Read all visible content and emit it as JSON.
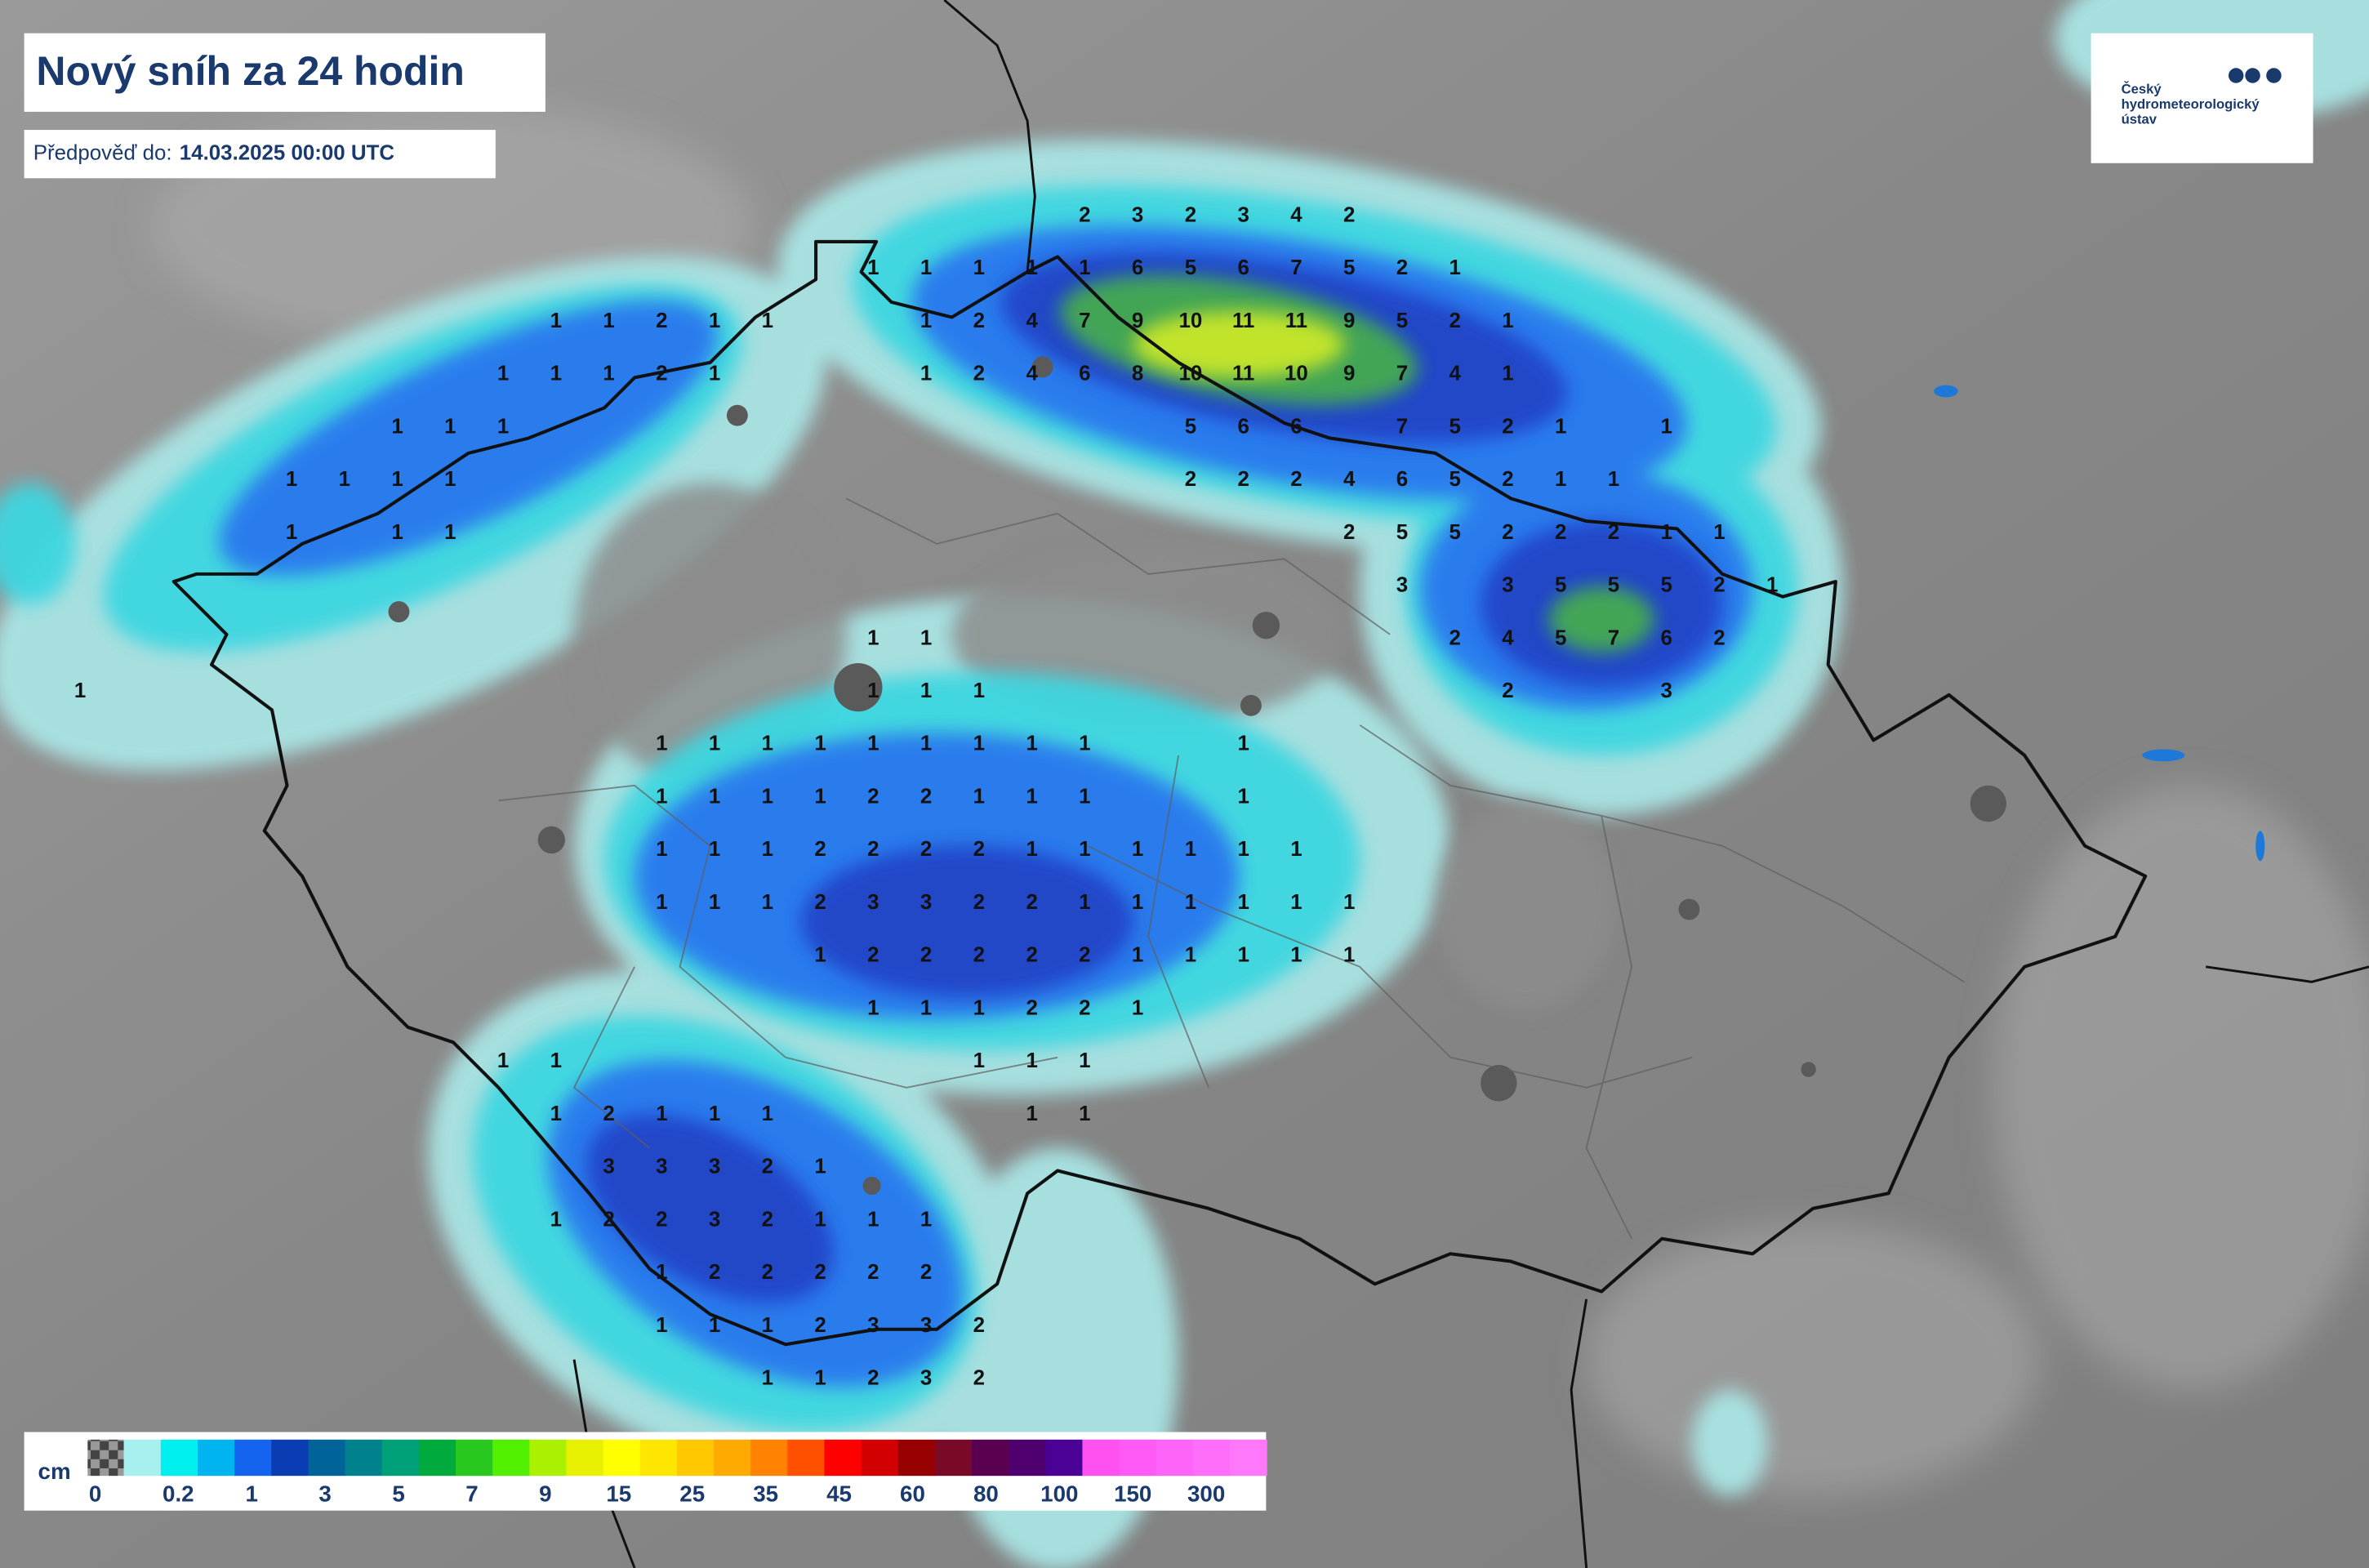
{
  "header": {
    "title": "Nový sníh za 24 hodin",
    "forecast_label": "Předpověď do:",
    "forecast_time": "14.03.2025 00:00 UTC"
  },
  "logo": {
    "lines": [
      "Český",
      "hydrometeorologický",
      "ústav"
    ]
  },
  "legend": {
    "unit": "cm",
    "labels": [
      "0",
      "0.2",
      "1",
      "3",
      "5",
      "7",
      "9",
      "15",
      "25",
      "35",
      "45",
      "60",
      "80",
      "100",
      "150",
      "300"
    ],
    "colors": [
      "#a8f0f0",
      "#00f0f0",
      "#00b4f0",
      "#1464f0",
      "#0a3cb4",
      "#00649b",
      "#00828c",
      "#00a078",
      "#00aa3c",
      "#28c81e",
      "#50f000",
      "#aaf000",
      "#e6f000",
      "#ffff00",
      "#ffe600",
      "#ffc800",
      "#ffaa00",
      "#ff8200",
      "#ff5000",
      "#ff0000",
      "#d20000",
      "#960000",
      "#780a28",
      "#5a0050",
      "#50006e",
      "#4b0096",
      "#ff50f0",
      "#ff5af5",
      "#ff64f8",
      "#ff6efa",
      "#ff78fc"
    ]
  },
  "map": {
    "grid": [
      [
        null,
        null,
        null,
        null,
        null,
        null,
        null,
        null,
        null,
        null,
        null,
        null,
        null,
        null,
        null,
        null,
        null,
        null,
        null,
        2,
        3,
        2,
        3,
        4,
        2
      ],
      [
        null,
        null,
        null,
        null,
        null,
        null,
        null,
        null,
        null,
        null,
        null,
        null,
        null,
        null,
        null,
        1,
        1,
        1,
        1,
        1,
        6,
        5,
        6,
        7,
        5,
        2,
        1
      ],
      [
        null,
        null,
        null,
        null,
        null,
        null,
        null,
        null,
        null,
        1,
        1,
        2,
        1,
        1,
        null,
        null,
        1,
        2,
        4,
        7,
        9,
        10,
        11,
        11,
        9,
        5,
        2,
        1
      ],
      [
        null,
        null,
        null,
        null,
        null,
        null,
        null,
        null,
        1,
        1,
        1,
        2,
        1,
        null,
        null,
        null,
        1,
        2,
        4,
        6,
        8,
        10,
        11,
        10,
        9,
        7,
        4,
        1
      ],
      [
        null,
        null,
        null,
        null,
        null,
        null,
        1,
        1,
        1,
        null,
        null,
        null,
        null,
        null,
        null,
        null,
        null,
        null,
        null,
        null,
        null,
        5,
        6,
        6,
        null,
        7,
        5,
        2,
        1,
        null,
        1
      ],
      [
        null,
        null,
        null,
        null,
        1,
        1,
        1,
        1,
        null,
        null,
        null,
        null,
        null,
        null,
        null,
        null,
        null,
        null,
        null,
        null,
        null,
        2,
        2,
        2,
        4,
        6,
        5,
        2,
        1,
        1
      ],
      [
        null,
        null,
        null,
        null,
        1,
        null,
        1,
        1,
        null,
        null,
        null,
        null,
        null,
        null,
        null,
        null,
        null,
        null,
        null,
        null,
        null,
        null,
        null,
        null,
        2,
        5,
        5,
        2,
        2,
        2,
        1,
        1
      ],
      [
        null,
        null,
        null,
        null,
        null,
        null,
        null,
        null,
        null,
        null,
        null,
        null,
        null,
        null,
        null,
        null,
        null,
        null,
        null,
        null,
        null,
        null,
        null,
        null,
        null,
        3,
        null,
        3,
        5,
        5,
        5,
        2,
        1
      ],
      [
        null,
        null,
        null,
        null,
        null,
        null,
        null,
        null,
        null,
        null,
        null,
        null,
        null,
        null,
        null,
        1,
        1,
        null,
        null,
        null,
        null,
        null,
        null,
        null,
        null,
        null,
        2,
        4,
        5,
        7,
        6,
        2
      ],
      [
        1,
        null,
        null,
        null,
        null,
        null,
        null,
        null,
        null,
        null,
        null,
        null,
        null,
        null,
        null,
        1,
        1,
        1,
        null,
        null,
        null,
        null,
        null,
        null,
        null,
        null,
        null,
        2,
        null,
        null,
        3
      ],
      [
        null,
        null,
        null,
        null,
        null,
        null,
        null,
        null,
        null,
        null,
        null,
        1,
        1,
        1,
        1,
        1,
        1,
        1,
        1,
        1,
        null,
        null,
        1
      ],
      [
        null,
        null,
        null,
        null,
        null,
        null,
        null,
        null,
        null,
        null,
        null,
        1,
        1,
        1,
        1,
        2,
        2,
        1,
        1,
        1,
        null,
        null,
        1
      ],
      [
        null,
        null,
        null,
        null,
        null,
        null,
        null,
        null,
        null,
        null,
        null,
        1,
        1,
        1,
        2,
        2,
        2,
        2,
        1,
        1,
        1,
        1,
        1,
        1
      ],
      [
        null,
        null,
        null,
        null,
        null,
        null,
        null,
        null,
        null,
        null,
        null,
        1,
        1,
        1,
        2,
        3,
        3,
        2,
        2,
        1,
        1,
        1,
        1,
        1,
        1
      ],
      [
        null,
        null,
        null,
        null,
        null,
        null,
        null,
        null,
        null,
        null,
        null,
        null,
        null,
        null,
        1,
        2,
        2,
        2,
        2,
        2,
        1,
        1,
        1,
        1,
        1
      ],
      [
        null,
        null,
        null,
        null,
        null,
        null,
        null,
        null,
        null,
        null,
        null,
        null,
        null,
        null,
        null,
        1,
        1,
        1,
        2,
        2,
        1
      ],
      [
        null,
        null,
        null,
        null,
        null,
        null,
        null,
        null,
        1,
        1,
        null,
        null,
        null,
        null,
        null,
        null,
        null,
        1,
        1,
        1
      ],
      [
        null,
        null,
        null,
        null,
        null,
        null,
        null,
        null,
        null,
        1,
        2,
        1,
        1,
        1,
        null,
        null,
        null,
        null,
        1,
        1
      ],
      [
        null,
        null,
        null,
        null,
        null,
        null,
        null,
        null,
        null,
        null,
        3,
        3,
        3,
        2,
        1
      ],
      [
        null,
        null,
        null,
        null,
        null,
        null,
        null,
        null,
        null,
        1,
        2,
        2,
        3,
        2,
        1,
        1,
        1
      ],
      [
        null,
        null,
        null,
        null,
        null,
        null,
        null,
        null,
        null,
        null,
        null,
        1,
        2,
        2,
        2,
        2,
        2
      ],
      [
        null,
        null,
        null,
        null,
        null,
        null,
        null,
        null,
        null,
        null,
        null,
        1,
        1,
        1,
        2,
        3,
        3,
        2
      ],
      [
        null,
        null,
        null,
        null,
        null,
        null,
        null,
        null,
        null,
        null,
        null,
        null,
        null,
        1,
        1,
        2,
        3,
        2
      ]
    ]
  }
}
